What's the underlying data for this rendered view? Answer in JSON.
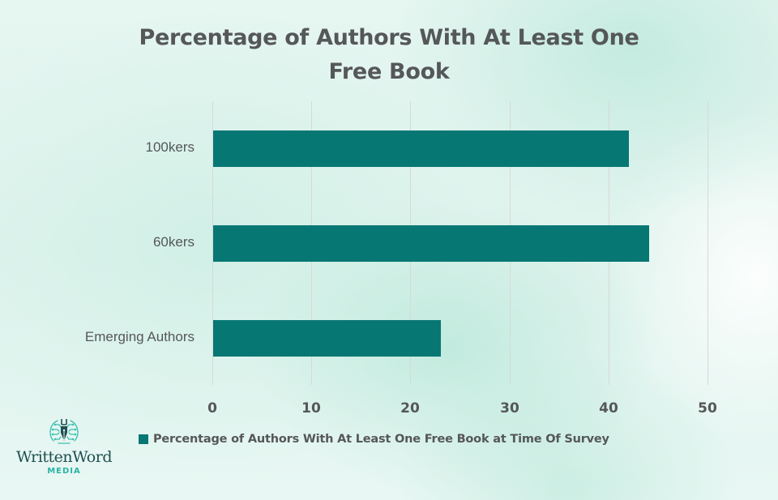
{
  "chart_data": {
    "type": "bar",
    "orientation": "horizontal",
    "title": "Percentage of Authors With At Least One Free Book",
    "title_lines": [
      "Percentage of Authors With At Least One",
      "Free Book"
    ],
    "categories": [
      "100kers",
      "60kers",
      "Emerging Authors"
    ],
    "series": [
      {
        "name": "Percentage of Authors With At Least One Free Book at Time Of Survey",
        "values": [
          42,
          44,
          23
        ],
        "color": "#077774"
      }
    ],
    "xlabel": "",
    "ylabel": "",
    "xlim": [
      0,
      50
    ],
    "x_ticks": [
      "0",
      "10",
      "20",
      "30",
      "40",
      "50"
    ],
    "grid": "vertical",
    "legend_position": "bottom"
  },
  "logo": {
    "name": "WrittenWord",
    "subtitle": "MEDIA"
  }
}
